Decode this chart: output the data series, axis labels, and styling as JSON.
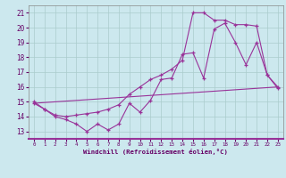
{
  "bg_color": "#cce8ee",
  "grid_color": "#aacccc",
  "line_color": "#993399",
  "xlabel": "Windchill (Refroidissement éolien,°C)",
  "xlim": [
    -0.5,
    23.5
  ],
  "ylim": [
    12.5,
    21.5
  ],
  "xticks": [
    0,
    1,
    2,
    3,
    4,
    5,
    6,
    7,
    8,
    9,
    10,
    11,
    12,
    13,
    14,
    15,
    16,
    17,
    18,
    19,
    20,
    21,
    22,
    23
  ],
  "yticks": [
    13,
    14,
    15,
    16,
    17,
    18,
    19,
    20,
    21
  ],
  "line1_x": [
    0,
    1,
    2,
    3,
    4,
    5,
    6,
    7,
    8,
    9,
    10,
    11,
    12,
    13,
    14,
    15,
    16,
    17,
    18,
    19,
    20,
    21,
    22,
    23
  ],
  "line1_y": [
    14.9,
    14.5,
    14.0,
    13.8,
    13.5,
    13.0,
    13.5,
    13.1,
    13.5,
    14.9,
    14.3,
    15.1,
    16.5,
    16.6,
    18.2,
    18.3,
    16.6,
    19.9,
    20.3,
    19.0,
    17.5,
    19.0,
    16.8,
    15.9
  ],
  "line2_x": [
    0,
    1,
    2,
    3,
    4,
    5,
    6,
    7,
    8,
    9,
    10,
    11,
    12,
    13,
    14,
    15,
    16,
    17,
    18,
    19,
    20,
    21,
    22,
    23
  ],
  "line2_y": [
    15.0,
    14.5,
    14.1,
    14.0,
    14.1,
    14.2,
    14.3,
    14.5,
    14.8,
    15.5,
    16.0,
    16.5,
    16.8,
    17.2,
    17.8,
    21.0,
    21.0,
    20.5,
    20.5,
    20.2,
    20.2,
    20.1,
    16.8,
    16.0
  ],
  "line3_x": [
    0,
    23
  ],
  "line3_y": [
    14.9,
    16.0
  ]
}
